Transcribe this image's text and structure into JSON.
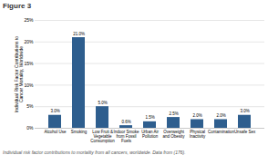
{
  "chart_data": {
    "type": "bar",
    "title": "Figure 3",
    "categories": [
      "Alcohol Use",
      "Smoking",
      "Low Fruit &\nVegetable\nConsumption",
      "Indoor Smoke\nfrom Fossil\nFuels",
      "Urban Air\nPollution",
      "Overweight\nand Obesity",
      "Physical\nInactivity",
      "Contamination",
      "Unsafe Sex"
    ],
    "values": [
      3.0,
      21.0,
      5.0,
      0.6,
      1.5,
      2.5,
      2.0,
      2.0,
      3.0
    ],
    "value_labels": [
      "3.0%",
      "21.0%",
      "5.0%",
      "0.6%",
      "1.5%",
      "2.5%",
      "2.0%",
      "2.0%",
      "3.0%"
    ],
    "data_labels": true,
    "color": "#2E5E8E",
    "ylabel": "Individual Risk Factor Contributions to\nCancer Mortality, Worldwide",
    "ylim": [
      0,
      25
    ],
    "yticks": [
      {
        "value": 0,
        "label": "0%"
      },
      {
        "value": 5,
        "label": "5%"
      },
      {
        "value": 10,
        "label": "10%"
      },
      {
        "value": 15,
        "label": "15%"
      },
      {
        "value": 20,
        "label": "20%"
      },
      {
        "value": 25,
        "label": "25%"
      }
    ],
    "grid": true,
    "footnote": "Individual risk factor contributions to mortality from all cancers, worldwide. Data from (176)."
  }
}
